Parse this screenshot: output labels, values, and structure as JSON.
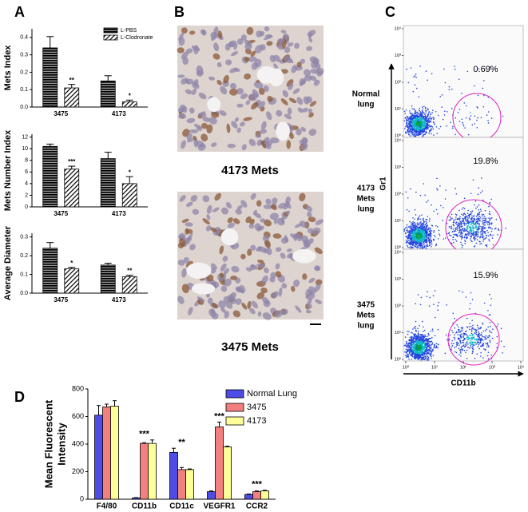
{
  "panel_labels": [
    "A",
    "B",
    "C",
    "D"
  ],
  "chart_data": [
    {
      "type": "bar",
      "y_label": "Mets Index",
      "categories": [
        "3475",
        "4173"
      ],
      "series": [
        {
          "name": "L-PBS",
          "color": "#000000",
          "pattern": "horizontal",
          "values": [
            0.34,
            0.15
          ],
          "errors": [
            0.065,
            0.03
          ]
        },
        {
          "name": "L-Clodronate",
          "color": "#000000",
          "pattern": "diagonal",
          "values": [
            0.11,
            0.03
          ],
          "errors": [
            0.02,
            0.01
          ],
          "significance": [
            "**",
            "*"
          ]
        }
      ],
      "ylim": [
        0,
        0.45
      ],
      "yticks": [
        {
          "value": 0,
          "label": "0.0"
        },
        0.1,
        0.2,
        0.3,
        0.4
      ],
      "legend": "top-right"
    },
    {
      "type": "bar",
      "y_label": "Mets Number Index",
      "categories": [
        "3475",
        "4173"
      ],
      "series": [
        {
          "color": "#000000",
          "pattern": "horizontal",
          "values": [
            10.4,
            8.3
          ],
          "errors": [
            0.4,
            1.1
          ]
        },
        {
          "color": "#000000",
          "pattern": "diagonal",
          "values": [
            6.5,
            4.0
          ],
          "errors": [
            0.5,
            1.2
          ],
          "significance": [
            "***",
            "*"
          ]
        }
      ],
      "ylim": [
        0,
        12.5
      ],
      "yticks": [
        0,
        2,
        4,
        6,
        8,
        10,
        12
      ]
    },
    {
      "type": "bar",
      "y_label": "Average Diameter",
      "categories": [
        "3475",
        "4173"
      ],
      "series": [
        {
          "color": "#000000",
          "pattern": "horizontal",
          "values": [
            0.24,
            0.15
          ],
          "errors": [
            0.03,
            0.01
          ]
        },
        {
          "color": "#000000",
          "pattern": "diagonal",
          "values": [
            0.13,
            0.088
          ],
          "errors": [
            0.008,
            0.008
          ],
          "significance": [
            "*",
            "**"
          ]
        }
      ],
      "ylim": [
        0,
        0.32
      ],
      "yticks": [
        {
          "value": 0,
          "label": "0.0"
        },
        0.1,
        0.2,
        0.3
      ]
    },
    {
      "type": "bar",
      "y_label": [
        "Mean Fluorescent",
        "Intensity"
      ],
      "categories": [
        "F4/80",
        "CD11b",
        "CD11c",
        "VEGFR1",
        "CCR2"
      ],
      "series": [
        {
          "name": "Normal Lung",
          "color": "#4d4de6",
          "values": [
            610,
            10,
            340,
            55,
            35
          ],
          "errors": [
            70,
            2,
            30,
            5,
            3
          ]
        },
        {
          "name": "3475",
          "color": "#f28080",
          "values": [
            670,
            405,
            215,
            525,
            55
          ],
          "errors": [
            20,
            5,
            15,
            35,
            5
          ]
        },
        {
          "name": "4173",
          "color": "#ffff99",
          "values": [
            675,
            405,
            215,
            380,
            60
          ],
          "errors": [
            40,
            25,
            5,
            5,
            5
          ]
        }
      ],
      "significance": [
        null,
        "***",
        "**",
        "***",
        "***"
      ],
      "ylim": [
        0,
        800
      ],
      "yticks": [
        0,
        200,
        400,
        600,
        800
      ],
      "legend": "top-right"
    }
  ],
  "panel_b": {
    "captions": [
      "4173 Mets",
      "3475 Mets"
    ]
  },
  "panel_c": {
    "x_label": "CD11b",
    "y_label": "Gr1",
    "scale": "log",
    "xticks": [
      {
        "value": 1,
        "label": "10⁰"
      },
      {
        "value": 10,
        "label": "10¹"
      },
      {
        "value": 100,
        "label": "10²"
      },
      {
        "value": 1000,
        "label": "10³"
      },
      {
        "value": 10000,
        "label": "10⁴"
      }
    ],
    "yticks": [
      {
        "value": 1,
        "label": "10⁰"
      },
      {
        "value": 10,
        "label": "10¹"
      },
      {
        "value": 100,
        "label": "10²"
      },
      {
        "value": 1000,
        "label": "10³"
      },
      {
        "value": 10000,
        "label": "10⁴"
      }
    ],
    "plots": [
      {
        "label": [
          "Normal",
          "lung"
        ],
        "gate_label": "0.69%"
      },
      {
        "label": [
          "4173",
          "Mets",
          "lung"
        ],
        "gate_label": "19.8%"
      },
      {
        "label": [
          "3475",
          "Mets",
          "lung"
        ],
        "gate_label": "15.9%"
      }
    ]
  }
}
